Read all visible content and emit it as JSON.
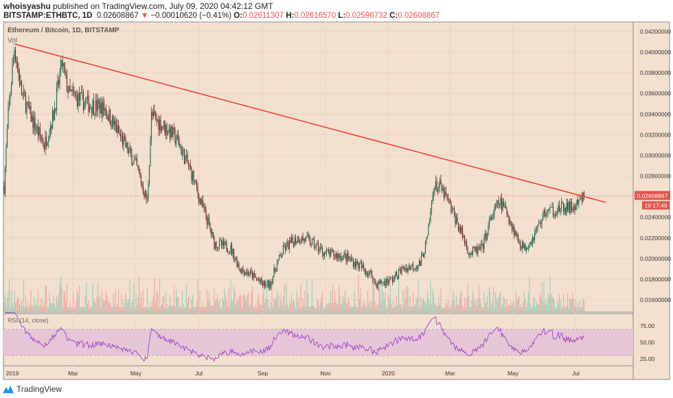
{
  "header": {
    "author": "whoisyashu",
    "published": "published on TradingView.com, July 09, 2020 04:42:12 GMT"
  },
  "quote": {
    "symbol": "BITSTAMP:ETHBTC, 1D",
    "last": "0.02608867",
    "change": "−0.00010620 (−0.41%)",
    "o_label": "O:",
    "o": "0.02611307",
    "h_label": "H:",
    "h": "0.02616570",
    "l_label": "L:",
    "l": "0.02596732",
    "c_label": "C:",
    "c": "0.02608867",
    "direction": "down"
  },
  "chart_data": {
    "type": "candlestick",
    "title": "Ethereum / Bitcoin, 1D, BITSTAMP",
    "volume_label": "Vol",
    "ylim": [
      0.0152,
      0.0429
    ],
    "y_ticks": [
      "0.04200000",
      "0.04000000",
      "0.03800000",
      "0.03600000",
      "0.03400000",
      "0.03200000",
      "0.03000000",
      "0.02800000",
      "0.02400000",
      "0.02200000",
      "0.02000000",
      "0.01800000",
      "0.01600000"
    ],
    "x_ticks": [
      [
        "2019",
        "2019-01-01"
      ],
      [
        "Mar",
        "2019-03-01"
      ],
      [
        "May",
        "2019-05-01"
      ],
      [
        "Jul",
        "2019-07-01"
      ],
      [
        "Sep",
        "2019-09-01"
      ],
      [
        "Nov",
        "2019-11-01"
      ],
      [
        "2020",
        "2020-01-01"
      ],
      [
        "Mar",
        "2020-03-01"
      ],
      [
        "May",
        "2020-05-01"
      ],
      [
        "Jul",
        "2020-07-01"
      ]
    ],
    "price_path": [
      [
        "2018-12-24",
        0.027
      ],
      [
        "2018-12-28",
        0.034
      ],
      [
        "2019-01-03",
        0.0405
      ],
      [
        "2019-01-10",
        0.036
      ],
      [
        "2019-01-20",
        0.0335
      ],
      [
        "2019-02-01",
        0.031
      ],
      [
        "2019-02-10",
        0.034
      ],
      [
        "2019-02-18",
        0.0389
      ],
      [
        "2019-02-25",
        0.036
      ],
      [
        "2019-03-15",
        0.035
      ],
      [
        "2019-04-01",
        0.0345
      ],
      [
        "2019-04-15",
        0.032
      ],
      [
        "2019-05-01",
        0.029
      ],
      [
        "2019-05-12",
        0.0255
      ],
      [
        "2019-05-16",
        0.0338
      ],
      [
        "2019-06-01",
        0.0325
      ],
      [
        "2019-06-10",
        0.0315
      ],
      [
        "2019-06-25",
        0.028
      ],
      [
        "2019-07-01",
        0.026
      ],
      [
        "2019-07-10",
        0.0235
      ],
      [
        "2019-07-16",
        0.0215
      ],
      [
        "2019-08-01",
        0.021
      ],
      [
        "2019-08-10",
        0.019
      ],
      [
        "2019-08-20",
        0.0185
      ],
      [
        "2019-09-01",
        0.0175
      ],
      [
        "2019-09-08",
        0.0175
      ],
      [
        "2019-09-15",
        0.0195
      ],
      [
        "2019-09-22",
        0.021
      ],
      [
        "2019-10-05",
        0.022
      ],
      [
        "2019-10-15",
        0.0218
      ],
      [
        "2019-11-01",
        0.0205
      ],
      [
        "2019-11-20",
        0.0202
      ],
      [
        "2019-12-01",
        0.0195
      ],
      [
        "2019-12-15",
        0.0185
      ],
      [
        "2019-12-20",
        0.0175
      ],
      [
        "2020-01-05",
        0.018
      ],
      [
        "2020-01-15",
        0.019
      ],
      [
        "2020-02-01",
        0.0195
      ],
      [
        "2020-02-08",
        0.022
      ],
      [
        "2020-02-14",
        0.027
      ],
      [
        "2020-02-20",
        0.027
      ],
      [
        "2020-02-28",
        0.0255
      ],
      [
        "2020-03-12",
        0.0225
      ],
      [
        "2020-03-20",
        0.0205
      ],
      [
        "2020-04-01",
        0.021
      ],
      [
        "2020-04-10",
        0.024
      ],
      [
        "2020-04-18",
        0.0255
      ],
      [
        "2020-04-25",
        0.0245
      ],
      [
        "2020-05-05",
        0.022
      ],
      [
        "2020-05-12",
        0.021
      ],
      [
        "2020-05-20",
        0.022
      ],
      [
        "2020-06-01",
        0.0245
      ],
      [
        "2020-06-15",
        0.0248
      ],
      [
        "2020-07-01",
        0.025
      ],
      [
        "2020-07-09",
        0.02609
      ]
    ],
    "trendline": [
      [
        "2019-01-03",
        0.0408
      ],
      [
        "2020-07-30",
        0.02545
      ]
    ],
    "last_price_label": "0.02608867",
    "countdown": "19:17:49",
    "rsi": {
      "label": "RSI (14, close)",
      "ticks": [
        "75.00",
        "50.00",
        "25.00"
      ],
      "upper": 70,
      "lower": 30
    },
    "colors": {
      "background": "#f3e0cf",
      "up": "#1f6b50",
      "down": "#6e2a2a",
      "trendline": "#f0413a",
      "rsi": "#9c3fc7",
      "rsi_band": "#e6c6d6",
      "price_tag": "#e5534b",
      "vol_up": "#9fcfb9",
      "vol_down": "#f0a9a0"
    }
  },
  "footer": {
    "brand": "TradingView"
  }
}
